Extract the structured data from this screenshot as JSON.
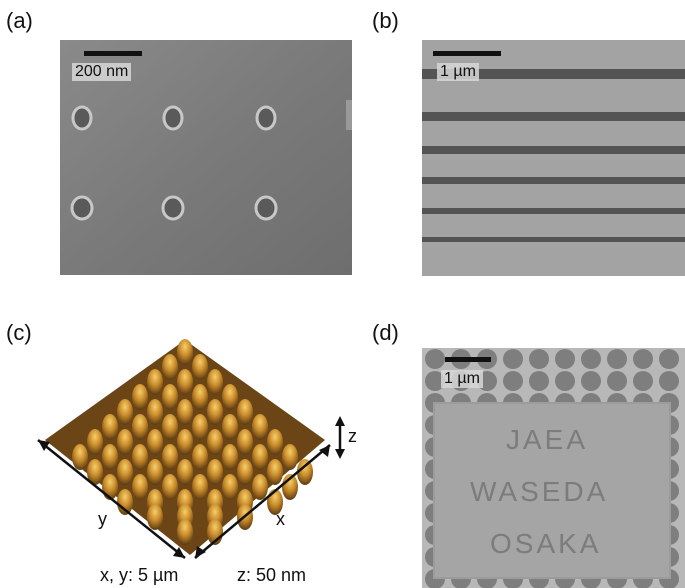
{
  "panels": {
    "a": {
      "label": "(a)",
      "scale": "200 nm"
    },
    "b": {
      "label": "(b)",
      "scale": "1 µm"
    },
    "c": {
      "label": "(c)",
      "axis_x": "x",
      "axis_y": "y",
      "axis_z": "z",
      "caption_xy": "x, y: 5 µm",
      "caption_z": "z: 50 nm"
    },
    "d": {
      "label": "(d)",
      "scale": "1 µm",
      "lines": [
        "JAEA",
        "WASEDA",
        "OSAKA"
      ]
    }
  },
  "colors": {
    "sem_dark": "#6f6f6f",
    "sem_light": "#9a9a9a",
    "afm_peak": "#f2c15a",
    "afm_base": "#5a3a12"
  }
}
